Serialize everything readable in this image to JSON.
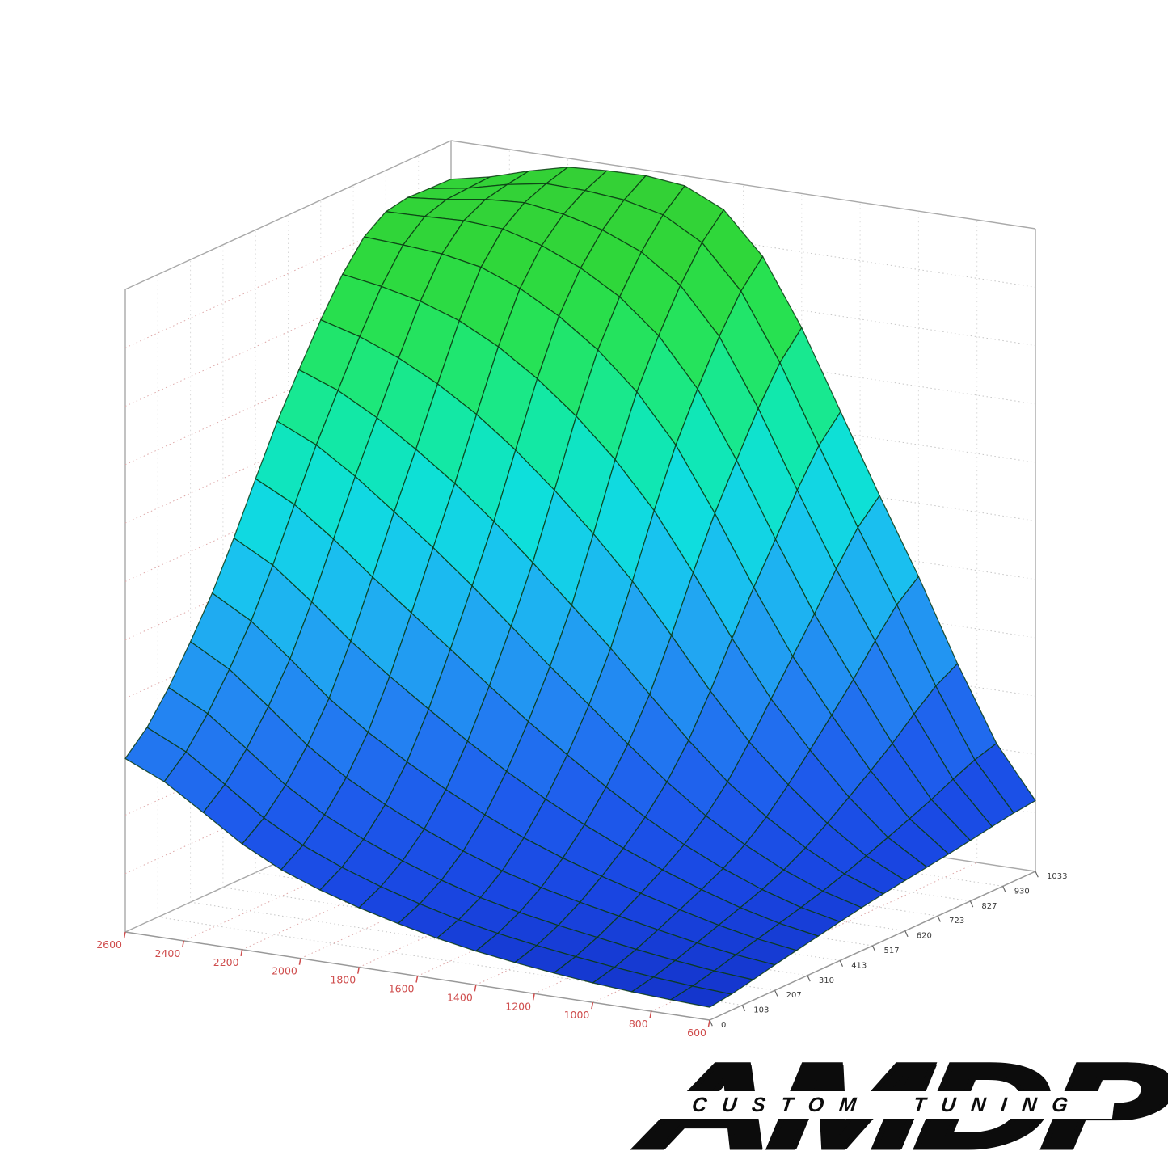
{
  "page": {
    "background": "#ffffff"
  },
  "chart_data": {
    "type": "surface3d",
    "title": "",
    "description": "3D mesh surface tuning map, green (high) to blue (low), MATLAB-style axes box with dotted grid",
    "x_axis": {
      "name": "rpm-axis",
      "tick_labels": [
        "2600",
        "2400",
        "2200",
        "2000",
        "1800",
        "1600",
        "1400",
        "1200",
        "1000",
        "800",
        "600"
      ],
      "range": [
        600,
        2600
      ],
      "tick_color": "#cf4d4d"
    },
    "y_axis": {
      "name": "load-axis",
      "tick_labels": [
        "0",
        "103",
        "207",
        "310",
        "413",
        "517",
        "620",
        "723",
        "827",
        "930",
        "1033"
      ],
      "range": [
        0,
        1033
      ],
      "tick_color": "#3a3a3a"
    },
    "z_axis": {
      "name": "map-value-axis",
      "labels_visible": false,
      "divisions": 11
    },
    "surface": {
      "grid_render_cells": 15,
      "control_u_rpm": [
        600,
        1100,
        1600,
        2100,
        2600
      ],
      "control_v_load": [
        0,
        258,
        517,
        775,
        1033
      ],
      "z_normalized": [
        [
          0.02,
          0.035,
          0.07,
          0.14,
          0.27
        ],
        [
          0.045,
          0.09,
          0.16,
          0.28,
          0.45
        ],
        [
          0.07,
          0.18,
          0.38,
          0.58,
          0.72
        ],
        [
          0.09,
          0.35,
          0.72,
          0.89,
          0.92
        ],
        [
          0.11,
          0.52,
          0.93,
          0.99,
          0.94
        ]
      ],
      "colormap": [
        [
          0.0,
          "#1331C6"
        ],
        [
          0.1,
          "#1946E2"
        ],
        [
          0.2,
          "#1E5CEC"
        ],
        [
          0.3,
          "#2380F2"
        ],
        [
          0.4,
          "#21A5F2"
        ],
        [
          0.5,
          "#17C8EE"
        ],
        [
          0.58,
          "#0EDFDC"
        ],
        [
          0.66,
          "#10E8B0"
        ],
        [
          0.74,
          "#1CE87E"
        ],
        [
          0.82,
          "#27E152"
        ],
        [
          0.9,
          "#2FD73A"
        ],
        [
          1.0,
          "#35CF35"
        ]
      ],
      "mesh_edge_color": "#0b3b14"
    },
    "style": {
      "box_edge_color": "#a9a9a9",
      "front_axis_color": "#999999",
      "grid_dot_gray": "#c6c6c6",
      "grid_dot_pink": "#deA8a8",
      "grid_dot_faint": "#d9d9d9"
    }
  },
  "logo": {
    "brand": "AMDP",
    "tagline": "CUSTOM TUNING"
  }
}
